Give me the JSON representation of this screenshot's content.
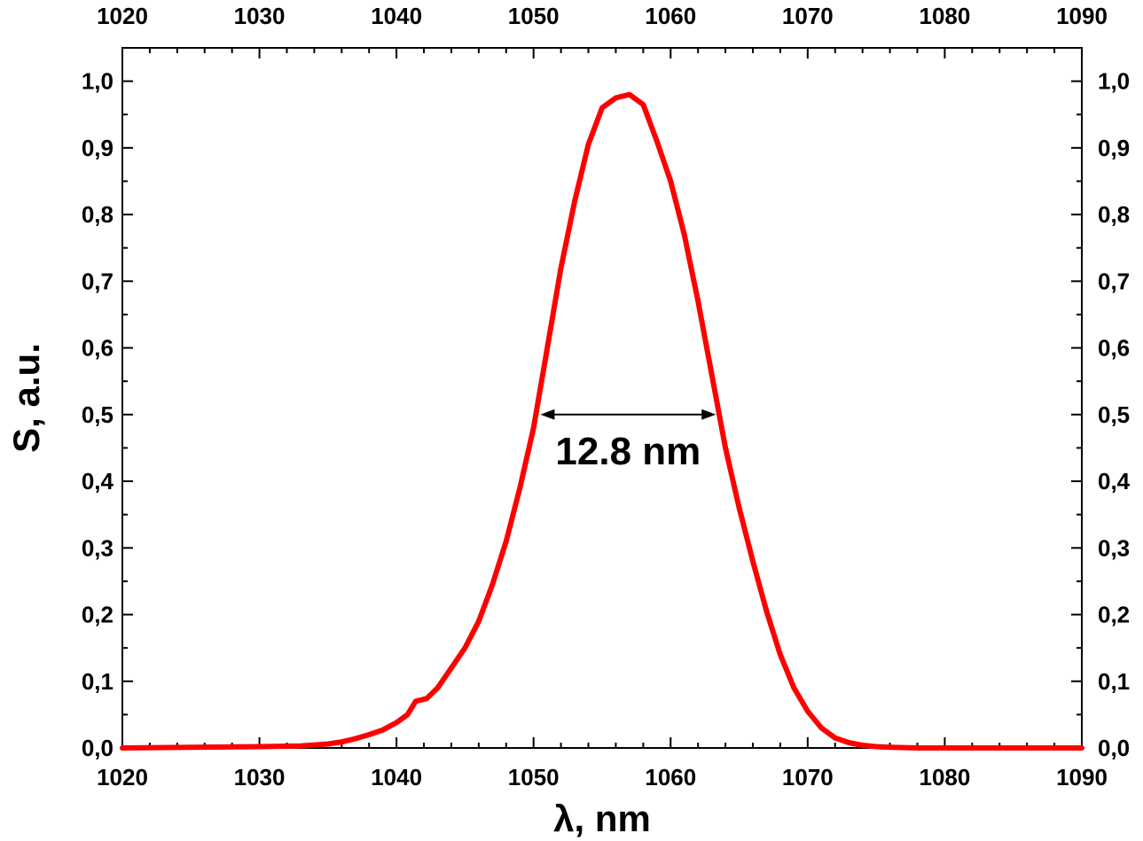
{
  "chart_data": {
    "type": "line",
    "xlabel": "λ, nm",
    "ylabel": "S, a.u.",
    "xlim": [
      1020,
      1090
    ],
    "ylim": [
      0,
      1.05
    ],
    "x_ticks": [
      "1020",
      "1030",
      "1040",
      "1050",
      "1060",
      "1070",
      "1080",
      "1090"
    ],
    "y_ticks": [
      "0,0",
      "0,1",
      "0,2",
      "0,3",
      "0,4",
      "0,5",
      "0,6",
      "0,7",
      "0,8",
      "0,9",
      "1,0"
    ],
    "grid": false,
    "series_color": "#ff0000",
    "series": [
      {
        "x": [
          1020,
          1030,
          1033,
          1035,
          1036,
          1037,
          1038,
          1039,
          1040,
          1040.8,
          1041.4,
          1042.2,
          1043,
          1044,
          1045,
          1046,
          1047,
          1048,
          1049,
          1050,
          1051,
          1052,
          1053,
          1054,
          1055,
          1056,
          1057,
          1058,
          1059,
          1060,
          1061,
          1062,
          1063,
          1064,
          1065,
          1066,
          1067,
          1068,
          1069,
          1070,
          1071,
          1072,
          1073,
          1074,
          1075,
          1076,
          1078,
          1080,
          1090
        ],
        "y": [
          0.0,
          0.002,
          0.003,
          0.006,
          0.009,
          0.014,
          0.02,
          0.027,
          0.038,
          0.05,
          0.07,
          0.074,
          0.09,
          0.12,
          0.15,
          0.19,
          0.245,
          0.31,
          0.39,
          0.48,
          0.6,
          0.72,
          0.82,
          0.905,
          0.96,
          0.975,
          0.98,
          0.965,
          0.91,
          0.85,
          0.77,
          0.67,
          0.56,
          0.45,
          0.36,
          0.28,
          0.205,
          0.14,
          0.09,
          0.055,
          0.03,
          0.015,
          0.008,
          0.004,
          0.002,
          0.001,
          0.0,
          0.0,
          0.0
        ]
      }
    ],
    "annotations": [
      {
        "text": "12.8 nm",
        "x1": 1050.5,
        "x2": 1063.3,
        "y": 0.5
      }
    ]
  }
}
